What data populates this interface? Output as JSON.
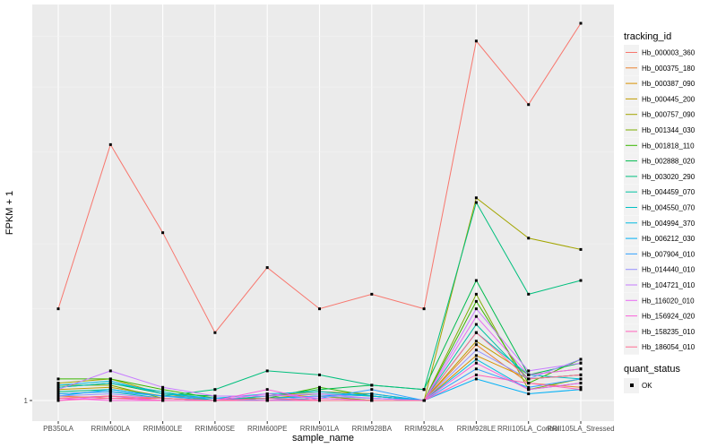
{
  "chart_data": {
    "type": "line",
    "xlabel": "sample_name",
    "ylabel": "FPKM + 1",
    "y_ticks": [
      "1"
    ],
    "y_scale": "log",
    "y_axis_range_approx": [
      0.95,
      5.3
    ],
    "grid": true,
    "legend_position": "right",
    "background": "#ebebeb",
    "categories": [
      "PB350LA",
      "RRIM600LA",
      "RRIM600LE",
      "RRIM600SE",
      "RRIM600PE",
      "RRIM901LA",
      "RRIM928BA",
      "RRIM928LA",
      "RRIM928LE",
      "RRII105LA_Control",
      "RRII105LA_Stressed"
    ],
    "legend_title": "tracking_id",
    "series": [
      {
        "name": "Hb_000003_360",
        "color": "#F8766D",
        "values": [
          1.5,
          3.1,
          2.1,
          1.35,
          1.8,
          1.5,
          1.6,
          1.5,
          4.9,
          3.7,
          5.3
        ]
      },
      {
        "name": "Hb_000375_180",
        "color": "#EA8331",
        "values": [
          1.02,
          1.01,
          1.01,
          1.0,
          1.01,
          1.02,
          1.0,
          1.0,
          1.28,
          1.08,
          1.06
        ]
      },
      {
        "name": "Hb_000387_090",
        "color": "#D89000",
        "values": [
          1.01,
          1.02,
          1.0,
          1.0,
          1.0,
          1.01,
          1.0,
          1.0,
          1.22,
          1.1,
          1.12
        ]
      },
      {
        "name": "Hb_000445_200",
        "color": "#C09B00",
        "values": [
          1.05,
          1.06,
          1.02,
          1.01,
          1.01,
          1.03,
          1.02,
          1.0,
          1.3,
          1.12,
          1.15
        ]
      },
      {
        "name": "Hb_000757_090",
        "color": "#A3A500",
        "values": [
          1.08,
          1.1,
          1.03,
          1.0,
          1.02,
          1.04,
          1.03,
          1.0,
          2.45,
          2.05,
          1.95
        ]
      },
      {
        "name": "Hb_001344_030",
        "color": "#7CAE00",
        "values": [
          1.07,
          1.07,
          1.01,
          1.0,
          1.01,
          1.02,
          1.0,
          1.0,
          1.6,
          1.05,
          1.1
        ]
      },
      {
        "name": "Hb_001818_110",
        "color": "#39B600",
        "values": [
          1.1,
          1.1,
          1.05,
          1.01,
          1.01,
          1.06,
          1.02,
          1.0,
          1.55,
          1.08,
          1.2
        ]
      },
      {
        "name": "Hb_002888_020",
        "color": "#00BB4E",
        "values": [
          1.06,
          1.08,
          1.03,
          1.02,
          1.02,
          1.05,
          1.07,
          1.05,
          1.7,
          1.12,
          1.18
        ]
      },
      {
        "name": "Hb_003020_290",
        "color": "#00BF7D",
        "values": [
          1.04,
          1.05,
          1.02,
          1.05,
          1.14,
          1.12,
          1.07,
          1.05,
          2.4,
          1.6,
          1.7
        ]
      },
      {
        "name": "Hb_004459_070",
        "color": "#00C1A3",
        "values": [
          1.03,
          1.04,
          1.01,
          1.0,
          1.01,
          1.02,
          1.01,
          1.0,
          1.4,
          1.1,
          1.12
        ]
      },
      {
        "name": "Hb_004550_070",
        "color": "#00BFC4",
        "values": [
          1.06,
          1.08,
          1.04,
          1.0,
          1.02,
          1.03,
          1.02,
          1.0,
          1.35,
          1.12,
          1.1
        ]
      },
      {
        "name": "Hb_004994_370",
        "color": "#00BAE0",
        "values": [
          1.07,
          1.09,
          1.03,
          1.01,
          1.03,
          1.04,
          1.02,
          1.0,
          1.2,
          1.05,
          1.08
        ]
      },
      {
        "name": "Hb_006212_030",
        "color": "#00B0F6",
        "values": [
          1.02,
          1.05,
          1.02,
          1.0,
          1.01,
          1.02,
          1.03,
          1.0,
          1.1,
          1.03,
          1.05
        ]
      },
      {
        "name": "Hb_007904_010",
        "color": "#35A2FF",
        "values": [
          1.03,
          1.04,
          1.02,
          1.01,
          1.0,
          1.01,
          1.05,
          1.0,
          1.15,
          1.06,
          1.1
        ]
      },
      {
        "name": "Hb_014440_010",
        "color": "#9590FF",
        "values": [
          1.02,
          1.03,
          1.01,
          1.0,
          1.0,
          1.02,
          1.01,
          1.0,
          1.25,
          1.1,
          1.2
        ]
      },
      {
        "name": "Hb_104721_010",
        "color": "#C77CFF",
        "values": [
          1.05,
          1.14,
          1.06,
          1.02,
          1.02,
          1.03,
          1.01,
          1.0,
          1.5,
          1.14,
          1.18
        ]
      },
      {
        "name": "Hb_116020_010",
        "color": "#E76BF3",
        "values": [
          1.0,
          1.02,
          1.0,
          1.0,
          1.03,
          1.01,
          1.0,
          1.0,
          1.45,
          1.12,
          1.15
        ]
      },
      {
        "name": "Hb_156924_020",
        "color": "#FA62DB",
        "values": [
          1.01,
          1.0,
          1.0,
          1.0,
          1.05,
          1.0,
          1.0,
          1.0,
          1.18,
          1.05,
          1.08
        ]
      },
      {
        "name": "Hb_158235_010",
        "color": "#FF62BC",
        "values": [
          1.0,
          1.01,
          1.0,
          1.0,
          1.0,
          1.0,
          1.0,
          1.0,
          1.12,
          1.08,
          1.05
        ]
      },
      {
        "name": "Hb_186054_010",
        "color": "#FF6C91",
        "values": [
          1.01,
          1.02,
          1.01,
          1.0,
          1.01,
          1.0,
          1.0,
          1.0,
          1.35,
          1.1,
          1.12
        ]
      }
    ],
    "point_legend_title": "quant_status",
    "point_legend_label": "OK"
  }
}
